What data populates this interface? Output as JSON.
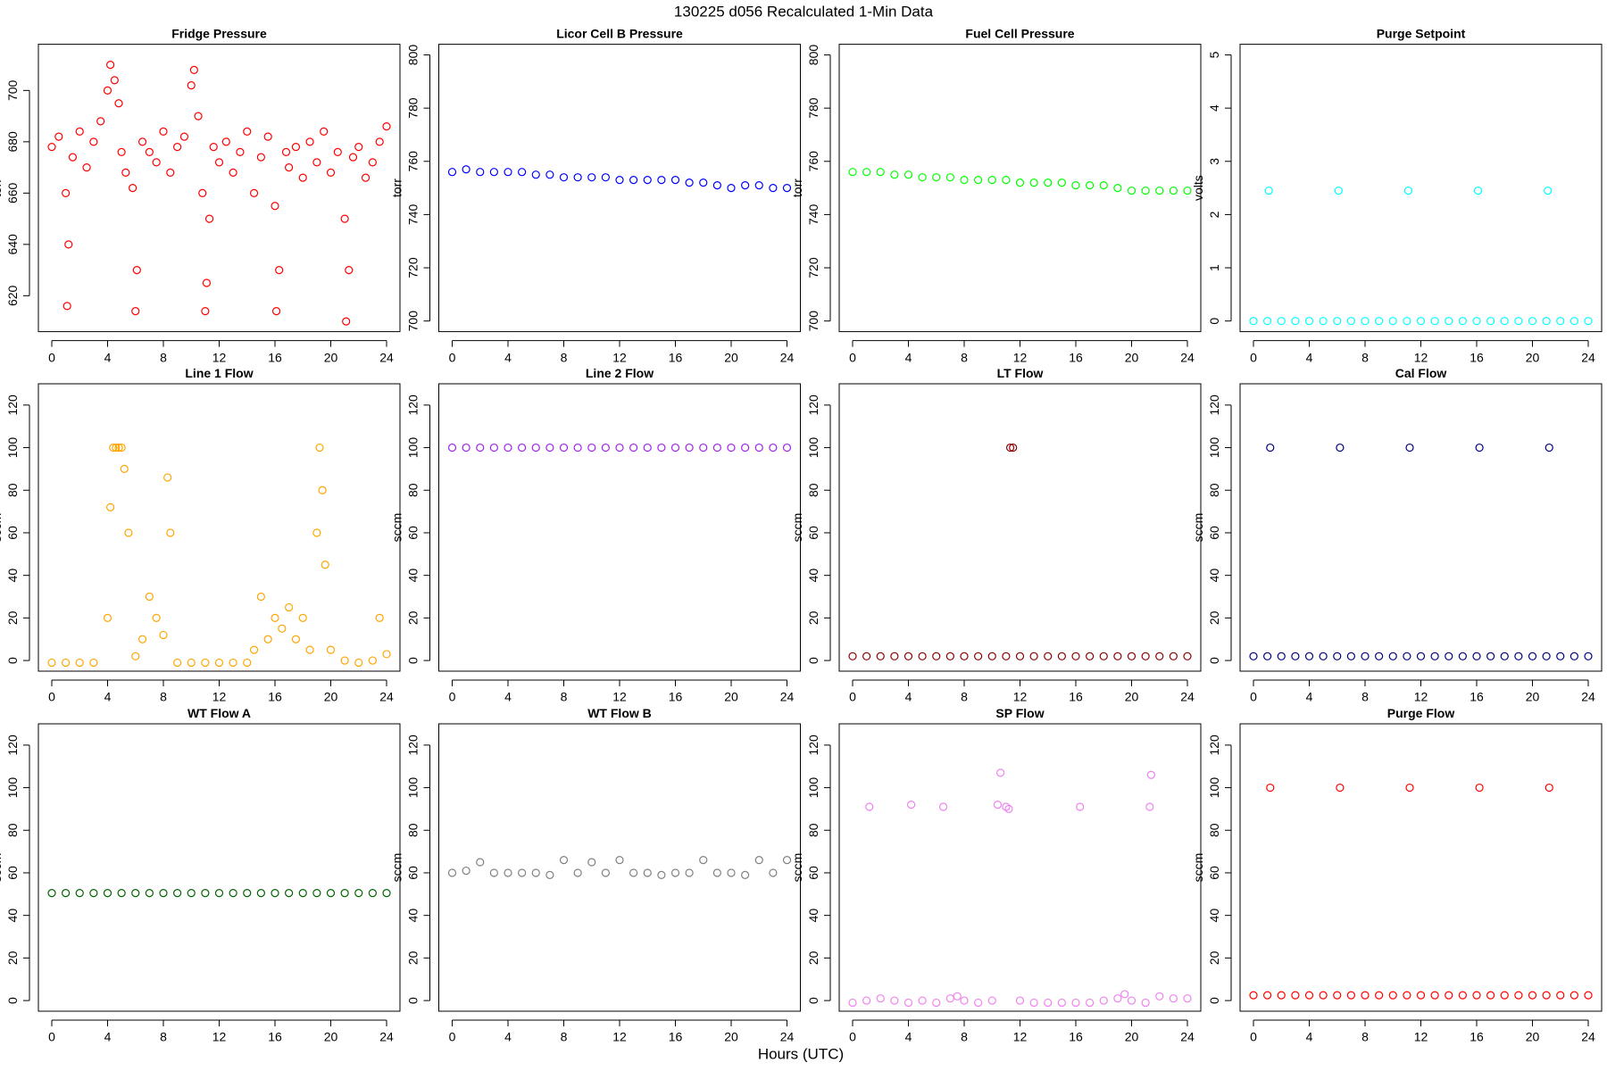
{
  "title": "130225   d056   Recalculated 1-Min Data",
  "x_label": "Hours (UTC)",
  "chart_data": [
    {
      "type": "scatter",
      "title": "Fridge Pressure",
      "y_label": "torr",
      "color": "#ff0000",
      "x": [
        0,
        0.5,
        1,
        1.1,
        1.2,
        1.5,
        2,
        2.5,
        3,
        3.5,
        4,
        4.2,
        4.5,
        4.8,
        5,
        5.3,
        5.8,
        6,
        6.1,
        6.5,
        7,
        7.5,
        8,
        8.5,
        9,
        9.5,
        10,
        10.2,
        10.5,
        10.8,
        11,
        11.1,
        11.3,
        11.6,
        12,
        12.5,
        13,
        13.5,
        14,
        14.5,
        15,
        15.5,
        16,
        16.1,
        16.3,
        16.8,
        17,
        17.5,
        18,
        18.5,
        19,
        19.5,
        20,
        20.5,
        21,
        21.1,
        21.3,
        21.6,
        22,
        22.5,
        23,
        23.5,
        24
      ],
      "values": [
        678,
        682,
        660,
        616,
        640,
        674,
        684,
        670,
        680,
        688,
        700,
        710,
        704,
        695,
        676,
        668,
        662,
        614,
        630,
        680,
        676,
        672,
        684,
        668,
        678,
        682,
        702,
        708,
        690,
        660,
        614,
        625,
        650,
        678,
        672,
        680,
        668,
        676,
        684,
        660,
        674,
        682,
        655,
        614,
        630,
        676,
        670,
        678,
        666,
        680,
        672,
        684,
        668,
        676,
        650,
        610,
        630,
        674,
        678,
        666,
        672,
        680,
        686
      ],
      "xlim": [
        -0.96,
        24.96
      ],
      "ylim": [
        606,
        718
      ],
      "xticks": [
        0,
        4,
        8,
        12,
        16,
        20,
        24
      ],
      "yticks": [
        620,
        640,
        660,
        680,
        700
      ]
    },
    {
      "type": "scatter",
      "title": "Licor Cell B Pressure",
      "y_label": "torr",
      "color": "#0000ff",
      "x": [
        0,
        1,
        2,
        3,
        4,
        5,
        6,
        7,
        8,
        9,
        10,
        11,
        12,
        13,
        14,
        15,
        16,
        17,
        18,
        19,
        20,
        21,
        22,
        23,
        24
      ],
      "values": [
        756,
        757,
        756,
        756,
        756,
        756,
        755,
        755,
        754,
        754,
        754,
        754,
        753,
        753,
        753,
        753,
        753,
        752,
        752,
        751,
        750,
        751,
        751,
        750,
        750
      ],
      "xlim": [
        -0.96,
        24.96
      ],
      "ylim": [
        696,
        804
      ],
      "xticks": [
        0,
        4,
        8,
        12,
        16,
        20,
        24
      ],
      "yticks": [
        700,
        720,
        740,
        760,
        780,
        800
      ]
    },
    {
      "type": "scatter",
      "title": "Fuel Cell Pressure",
      "y_label": "torr",
      "color": "#00ff00",
      "x": [
        0,
        1,
        2,
        3,
        4,
        5,
        6,
        7,
        8,
        9,
        10,
        11,
        12,
        13,
        14,
        15,
        16,
        17,
        18,
        19,
        20,
        21,
        22,
        23,
        24
      ],
      "values": [
        756,
        756,
        756,
        755,
        755,
        754,
        754,
        754,
        753,
        753,
        753,
        753,
        752,
        752,
        752,
        752,
        751,
        751,
        751,
        750,
        749,
        749,
        749,
        749,
        749
      ],
      "xlim": [
        -0.96,
        24.96
      ],
      "ylim": [
        696,
        804
      ],
      "xticks": [
        0,
        4,
        8,
        12,
        16,
        20,
        24
      ],
      "yticks": [
        700,
        720,
        740,
        760,
        780,
        800
      ]
    },
    {
      "type": "scatter",
      "title": "Purge Setpoint",
      "y_label": "volts",
      "color": "#00ffff",
      "x": [
        0,
        1,
        1.1,
        2,
        3,
        4,
        5,
        6,
        6.1,
        7,
        8,
        9,
        10,
        11,
        11.1,
        12,
        13,
        14,
        15,
        16,
        16.1,
        17,
        18,
        19,
        20,
        21,
        21.1,
        22,
        23,
        24
      ],
      "values": [
        0,
        0,
        2.45,
        0,
        0,
        0,
        0,
        0,
        2.45,
        0,
        0,
        0,
        0,
        0,
        2.45,
        0,
        0,
        0,
        0,
        0,
        2.45,
        0,
        0,
        0,
        0,
        0,
        2.45,
        0,
        0,
        0
      ],
      "xlim": [
        -0.96,
        24.96
      ],
      "ylim": [
        -0.2,
        5.2
      ],
      "xticks": [
        0,
        4,
        8,
        12,
        16,
        20,
        24
      ],
      "yticks": [
        0,
        1,
        2,
        3,
        4,
        5
      ]
    },
    {
      "type": "scatter",
      "title": "Line 1 Flow",
      "y_label": "sccm",
      "color": "#ffa500",
      "x": [
        0,
        1,
        2,
        3,
        4,
        4.2,
        4.4,
        4.6,
        4.8,
        5,
        5.2,
        5.5,
        6,
        6.5,
        7,
        7.5,
        8,
        8.3,
        8.5,
        9,
        10,
        11,
        12,
        13,
        14,
        14.5,
        15,
        15.5,
        16,
        16.5,
        17,
        17.5,
        18,
        18.5,
        19,
        19.2,
        19.4,
        19.6,
        20,
        21,
        22,
        23,
        23.5,
        24
      ],
      "values": [
        -1,
        -1,
        -1,
        -1,
        20,
        72,
        100,
        100,
        100,
        100,
        90,
        60,
        2,
        10,
        30,
        20,
        12,
        86,
        60,
        -1,
        -1,
        -1,
        -1,
        -1,
        -1,
        5,
        30,
        10,
        20,
        15,
        25,
        10,
        20,
        5,
        60,
        100,
        80,
        45,
        5,
        0,
        -1,
        0,
        20,
        3
      ],
      "xlim": [
        -0.96,
        24.96
      ],
      "ylim": [
        -5,
        130
      ],
      "xticks": [
        0,
        4,
        8,
        12,
        16,
        20,
        24
      ],
      "yticks": [
        0,
        20,
        40,
        60,
        80,
        100,
        120
      ]
    },
    {
      "type": "scatter",
      "title": "Line 2 Flow",
      "y_label": "sccm",
      "color": "#a020f0",
      "x": [
        0,
        1,
        2,
        3,
        4,
        5,
        6,
        7,
        8,
        9,
        10,
        11,
        12,
        13,
        14,
        15,
        16,
        17,
        18,
        19,
        20,
        21,
        22,
        23,
        24
      ],
      "values": [
        100,
        100,
        100,
        100,
        100,
        100,
        100,
        100,
        100,
        100,
        100,
        100,
        100,
        100,
        100,
        100,
        100,
        100,
        100,
        100,
        100,
        100,
        100,
        100,
        100
      ],
      "xlim": [
        -0.96,
        24.96
      ],
      "ylim": [
        -5,
        130
      ],
      "xticks": [
        0,
        4,
        8,
        12,
        16,
        20,
        24
      ],
      "yticks": [
        0,
        20,
        40,
        60,
        80,
        100,
        120
      ]
    },
    {
      "type": "scatter",
      "title": "LT Flow",
      "y_label": "sccm",
      "color": "#8b0000",
      "x": [
        0,
        1,
        2,
        3,
        4,
        5,
        6,
        7,
        8,
        9,
        10,
        11,
        11.3,
        11.5,
        12,
        13,
        14,
        15,
        16,
        17,
        18,
        19,
        20,
        21,
        22,
        23,
        24
      ],
      "values": [
        2,
        2,
        2,
        2,
        2,
        2,
        2,
        2,
        2,
        2,
        2,
        2,
        100,
        100,
        2,
        2,
        2,
        2,
        2,
        2,
        2,
        2,
        2,
        2,
        2,
        2,
        2
      ],
      "xlim": [
        -0.96,
        24.96
      ],
      "ylim": [
        -5,
        130
      ],
      "xticks": [
        0,
        4,
        8,
        12,
        16,
        20,
        24
      ],
      "yticks": [
        0,
        20,
        40,
        60,
        80,
        100,
        120
      ]
    },
    {
      "type": "scatter",
      "title": "Cal Flow",
      "y_label": "sccm",
      "color": "#000080",
      "x": [
        0,
        1,
        1.2,
        2,
        3,
        4,
        5,
        6,
        6.2,
        7,
        8,
        9,
        10,
        11,
        11.2,
        12,
        13,
        14,
        15,
        16,
        16.2,
        17,
        18,
        19,
        20,
        21,
        21.2,
        22,
        23,
        24
      ],
      "values": [
        2,
        2,
        100,
        2,
        2,
        2,
        2,
        2,
        100,
        2,
        2,
        2,
        2,
        2,
        100,
        2,
        2,
        2,
        2,
        2,
        100,
        2,
        2,
        2,
        2,
        2,
        100,
        2,
        2,
        2
      ],
      "xlim": [
        -0.96,
        24.96
      ],
      "ylim": [
        -5,
        130
      ],
      "xticks": [
        0,
        4,
        8,
        12,
        16,
        20,
        24
      ],
      "yticks": [
        0,
        20,
        40,
        60,
        80,
        100,
        120
      ]
    },
    {
      "type": "scatter",
      "title": "WT Flow A",
      "y_label": "sccm",
      "color": "#006400",
      "x": [
        0,
        1,
        2,
        3,
        4,
        5,
        6,
        7,
        8,
        9,
        10,
        11,
        12,
        13,
        14,
        15,
        16,
        17,
        18,
        19,
        20,
        21,
        22,
        23,
        24
      ],
      "values": [
        50.5,
        50.5,
        50.5,
        50.5,
        50.5,
        50.5,
        50.5,
        50.5,
        50.5,
        50.5,
        50.5,
        50.5,
        50.5,
        50.5,
        50.5,
        50.5,
        50.5,
        50.5,
        50.5,
        50.5,
        50.5,
        50.5,
        50.5,
        50.5,
        50.5
      ],
      "xlim": [
        -0.96,
        24.96
      ],
      "ylim": [
        -5,
        130
      ],
      "xticks": [
        0,
        4,
        8,
        12,
        16,
        20,
        24
      ],
      "yticks": [
        0,
        20,
        40,
        60,
        80,
        100,
        120
      ]
    },
    {
      "type": "scatter",
      "title": "WT Flow B",
      "y_label": "sccm",
      "color": "#808080",
      "x": [
        0,
        1,
        2,
        3,
        4,
        5,
        6,
        7,
        8,
        9,
        10,
        11,
        12,
        13,
        14,
        15,
        16,
        17,
        18,
        19,
        20,
        21,
        22,
        23,
        24
      ],
      "values": [
        60,
        61,
        65,
        60,
        60,
        60,
        60,
        59,
        66,
        60,
        65,
        60,
        66,
        60,
        60,
        59,
        60,
        60,
        66,
        60,
        60,
        59,
        66,
        60,
        66
      ],
      "xlim": [
        -0.96,
        24.96
      ],
      "ylim": [
        -5,
        130
      ],
      "xticks": [
        0,
        4,
        8,
        12,
        16,
        20,
        24
      ],
      "yticks": [
        0,
        20,
        40,
        60,
        80,
        100,
        120
      ]
    },
    {
      "type": "scatter",
      "title": "SP Flow",
      "y_label": "sccm",
      "color": "#ee82ee",
      "x": [
        0,
        1,
        1.2,
        2,
        3,
        4,
        4.2,
        5,
        6,
        6.5,
        7,
        7.5,
        8,
        9,
        10,
        10.4,
        10.6,
        11,
        11.2,
        12,
        13,
        14,
        15,
        16,
        16.3,
        17,
        18,
        19,
        19.5,
        20,
        21,
        21.3,
        21.4,
        22,
        23,
        24
      ],
      "values": [
        -1,
        0,
        91,
        1,
        0,
        -1,
        92,
        0,
        -1,
        91,
        1,
        2,
        0,
        -1,
        0,
        92,
        107,
        91,
        90,
        0,
        -1,
        -1,
        -1,
        -1,
        91,
        -1,
        0,
        1,
        3,
        0,
        -1,
        91,
        106,
        2,
        1,
        1
      ],
      "xlim": [
        -0.96,
        24.96
      ],
      "ylim": [
        -5,
        130
      ],
      "xticks": [
        0,
        4,
        8,
        12,
        16,
        20,
        24
      ],
      "yticks": [
        0,
        20,
        40,
        60,
        80,
        100,
        120
      ]
    },
    {
      "type": "scatter",
      "title": "Purge Flow",
      "y_label": "sccm",
      "color": "#ff0000",
      "x": [
        0,
        1,
        1.2,
        2,
        3,
        4,
        5,
        6,
        6.2,
        7,
        8,
        9,
        10,
        11,
        11.2,
        12,
        13,
        14,
        15,
        16,
        16.2,
        17,
        18,
        19,
        20,
        21,
        21.2,
        22,
        23,
        24
      ],
      "values": [
        2.5,
        2.5,
        100,
        2.5,
        2.5,
        2.5,
        2.5,
        2.5,
        100,
        2.5,
        2.5,
        2.5,
        2.5,
        2.5,
        100,
        2.5,
        2.5,
        2.5,
        2.5,
        2.5,
        100,
        2.5,
        2.5,
        2.5,
        2.5,
        2.5,
        100,
        2.5,
        2.5,
        2.5
      ],
      "xlim": [
        -0.96,
        24.96
      ],
      "ylim": [
        -5,
        130
      ],
      "xticks": [
        0,
        4,
        8,
        12,
        16,
        20,
        24
      ],
      "yticks": [
        0,
        20,
        40,
        60,
        80,
        100,
        120
      ]
    }
  ]
}
